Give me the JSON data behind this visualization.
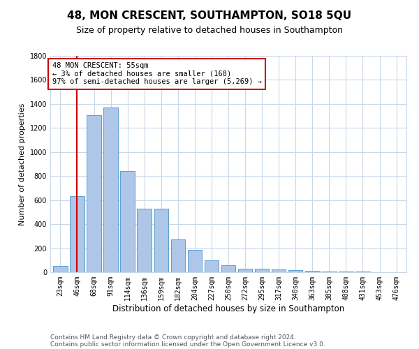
{
  "title": "48, MON CRESCENT, SOUTHAMPTON, SO18 5QU",
  "subtitle": "Size of property relative to detached houses in Southampton",
  "xlabel": "Distribution of detached houses by size in Southampton",
  "ylabel": "Number of detached properties",
  "categories": [
    "23sqm",
    "46sqm",
    "68sqm",
    "91sqm",
    "114sqm",
    "136sqm",
    "159sqm",
    "182sqm",
    "204sqm",
    "227sqm",
    "250sqm",
    "272sqm",
    "295sqm",
    "317sqm",
    "340sqm",
    "363sqm",
    "385sqm",
    "408sqm",
    "431sqm",
    "453sqm",
    "476sqm"
  ],
  "values": [
    50,
    635,
    1305,
    1370,
    840,
    530,
    530,
    275,
    185,
    100,
    60,
    30,
    30,
    25,
    15,
    10,
    8,
    5,
    3,
    2,
    2
  ],
  "bar_color": "#aec6e8",
  "bar_edge_color": "#5a9fd4",
  "background_color": "#ffffff",
  "grid_color": "#c8d8e8",
  "annotation_text": "48 MON CRESCENT: 55sqm\n← 3% of detached houses are smaller (168)\n97% of semi-detached houses are larger (5,269) →",
  "vline_x_index": 1,
  "annotation_box_color": "#ffffff",
  "annotation_box_edge_color": "#cc0000",
  "vline_color": "#cc0000",
  "footer_line1": "Contains HM Land Registry data © Crown copyright and database right 2024.",
  "footer_line2": "Contains public sector information licensed under the Open Government Licence v3.0.",
  "ylim": [
    0,
    1800
  ],
  "yticks": [
    0,
    200,
    400,
    600,
    800,
    1000,
    1200,
    1400,
    1600,
    1800
  ],
  "title_fontsize": 11,
  "subtitle_fontsize": 9,
  "xlabel_fontsize": 8.5,
  "ylabel_fontsize": 8,
  "tick_fontsize": 7,
  "annotation_fontsize": 7.5,
  "footer_fontsize": 6.5
}
